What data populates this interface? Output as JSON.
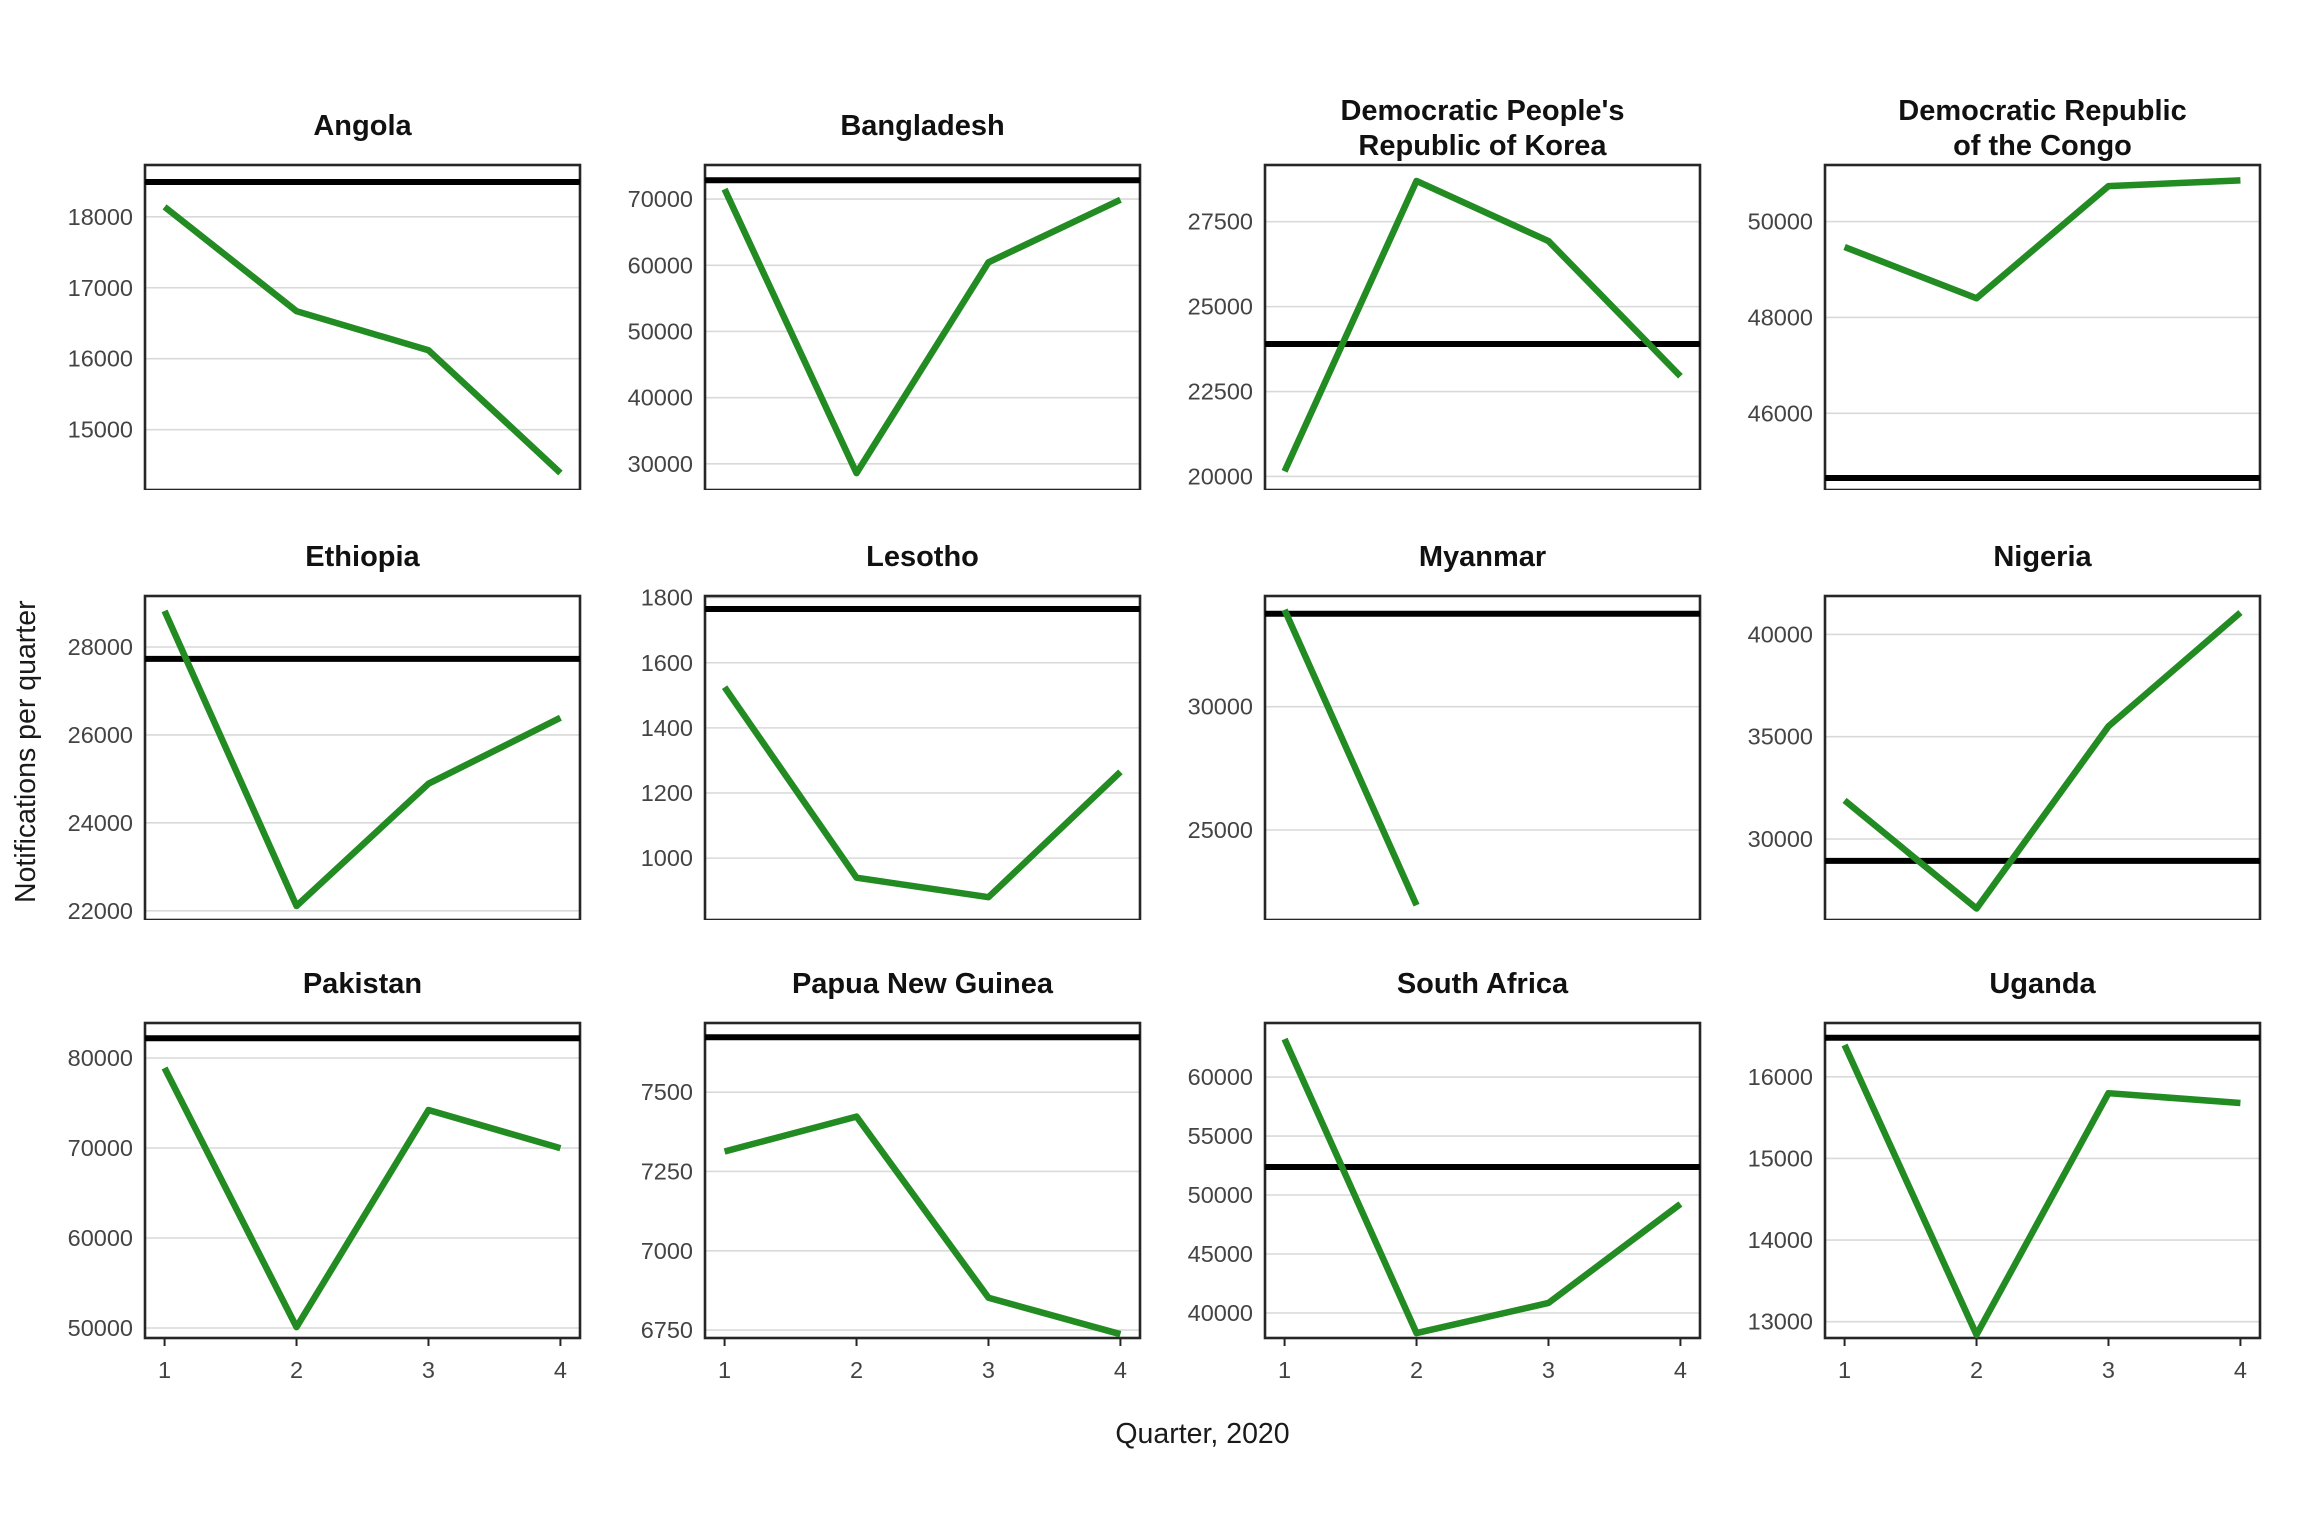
{
  "figure": {
    "x_axis_title": "Quarter, 2020",
    "y_axis_title": "Notifications per quarter",
    "x_tick_labels": [
      "1",
      "2",
      "3",
      "4"
    ],
    "colors": {
      "line": "#228B22",
      "reference": "#000000",
      "gridline": "#d9d9d9",
      "border": "#262626",
      "tick_text": "#444444"
    }
  },
  "chart_data": [
    {
      "type": "line",
      "id": "angola",
      "title_lines": [
        "Angola"
      ],
      "quarters": [
        1,
        2,
        3,
        4
      ],
      "values": [
        18140,
        16670,
        16120,
        14390
      ],
      "reference": 18490,
      "yticks": [
        15000,
        16000,
        17000,
        18000
      ],
      "ylim": [
        14150,
        18730
      ]
    },
    {
      "type": "line",
      "id": "bangladesh",
      "title_lines": [
        "Bangladesh"
      ],
      "quarters": [
        1,
        2,
        3,
        4
      ],
      "values": [
        71500,
        28600,
        60450,
        69900
      ],
      "reference": 72850,
      "yticks": [
        30000,
        40000,
        50000,
        60000,
        70000
      ],
      "ylim": [
        26050,
        75150
      ]
    },
    {
      "type": "line",
      "id": "democratic-peoples-republic-of-korea",
      "title_lines": [
        "Democratic People's",
        "Republic of Korea"
      ],
      "quarters": [
        1,
        2,
        3,
        4
      ],
      "values": [
        20150,
        28700,
        26930,
        22950
      ],
      "reference": 23900,
      "yticks": [
        20000,
        22500,
        25000,
        27500
      ],
      "ylim": [
        19600,
        29170
      ]
    },
    {
      "type": "line",
      "id": "democratic-republic-of-the-congo",
      "title_lines": [
        "Democratic Republic",
        "of the Congo"
      ],
      "quarters": [
        1,
        2,
        3,
        4
      ],
      "values": [
        49470,
        48400,
        50740,
        50860
      ],
      "reference": 44650,
      "yticks": [
        46000,
        48000,
        50000
      ],
      "ylim": [
        44400,
        51180
      ]
    },
    {
      "type": "line",
      "id": "ethiopia",
      "title_lines": [
        "Ethiopia"
      ],
      "quarters": [
        1,
        2,
        3,
        4
      ],
      "values": [
        28820,
        22110,
        24890,
        26390
      ],
      "reference": 27730,
      "yticks": [
        22000,
        24000,
        26000,
        28000
      ],
      "ylim": [
        21790,
        29160
      ]
    },
    {
      "type": "line",
      "id": "lesotho",
      "title_lines": [
        "Lesotho"
      ],
      "quarters": [
        1,
        2,
        3,
        4
      ],
      "values": [
        1525,
        940,
        880,
        1265
      ],
      "reference": 1765,
      "yticks": [
        1000,
        1200,
        1400,
        1600,
        1800
      ],
      "ylim": [
        810,
        1805
      ]
    },
    {
      "type": "line",
      "id": "myanmar",
      "title_lines": [
        "Myanmar"
      ],
      "quarters": [
        1,
        2
      ],
      "values": [
        33930,
        21950
      ],
      "reference": 33770,
      "yticks": [
        25000,
        30000
      ],
      "ylim": [
        21350,
        34490
      ]
    },
    {
      "type": "line",
      "id": "nigeria",
      "title_lines": [
        "Nigeria"
      ],
      "quarters": [
        1,
        2,
        3,
        4
      ],
      "values": [
        31890,
        26600,
        35510,
        41070
      ],
      "reference": 28930,
      "yticks": [
        30000,
        35000,
        40000
      ],
      "ylim": [
        26040,
        41880
      ]
    },
    {
      "type": "line",
      "id": "pakistan",
      "title_lines": [
        "Pakistan"
      ],
      "quarters": [
        1,
        2,
        3,
        4
      ],
      "values": [
        78890,
        50100,
        74220,
        69980
      ],
      "reference": 82200,
      "yticks": [
        50000,
        60000,
        70000,
        80000
      ],
      "ylim": [
        48890,
        83890
      ]
    },
    {
      "type": "line",
      "id": "papua-new-guinea",
      "title_lines": [
        "Papua New Guinea"
      ],
      "quarters": [
        1,
        2,
        3,
        4
      ],
      "values": [
        7313,
        7423,
        6852,
        6737
      ],
      "reference": 7673,
      "yticks": [
        6750,
        7000,
        7250,
        7500
      ],
      "ylim": [
        6725,
        7718
      ]
    },
    {
      "type": "line",
      "id": "south-africa",
      "title_lines": [
        "South Africa"
      ],
      "quarters": [
        1,
        2,
        3,
        4
      ],
      "values": [
        63220,
        38300,
        40850,
        49240
      ],
      "reference": 52370,
      "yticks": [
        40000,
        45000,
        50000,
        55000,
        60000
      ],
      "ylim": [
        37880,
        64580
      ]
    },
    {
      "type": "line",
      "id": "uganda",
      "title_lines": [
        "Uganda"
      ],
      "quarters": [
        1,
        2,
        3,
        4
      ],
      "values": [
        16390,
        12840,
        15800,
        15680
      ],
      "reference": 16480,
      "yticks": [
        13000,
        14000,
        15000,
        16000
      ],
      "ylim": [
        12800,
        16660
      ]
    }
  ]
}
